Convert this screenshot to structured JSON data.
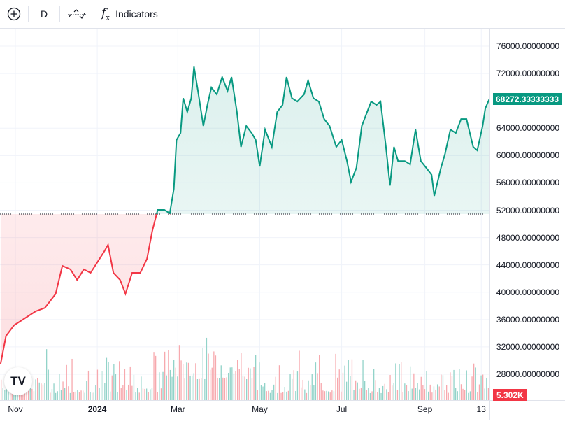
{
  "toolbar": {
    "add_icon": "plus-circle-icon",
    "interval": "D",
    "chart_type_icon": "baseline-chart-icon",
    "indicators_icon": "fx-icon",
    "indicators_label": "Indicators"
  },
  "colors": {
    "up": "#089981",
    "down": "#f23645",
    "vol_up": "#92d3c9",
    "vol_down": "#f7a9ae",
    "grid": "#f0f3fa"
  },
  "last_price": "68272.33333333",
  "last_volume": "5.302K",
  "chart_data": {
    "type": "area",
    "subtype": "baseline",
    "baseline": 51437,
    "ylim": [
      25800,
      78000
    ],
    "yticks": [
      "76000.00000000",
      "72000.00000000",
      "64000.00000000",
      "60000.00000000",
      "56000.00000000",
      "52000.00000000",
      "48000.00000000",
      "44000.00000000",
      "40000.00000000",
      "36000.00000000",
      "32000.00000000",
      "28000.00000000"
    ],
    "ytick_values": [
      76000,
      72000,
      64000,
      60000,
      56000,
      52000,
      48000,
      44000,
      40000,
      36000,
      32000,
      28000
    ],
    "xticks": [
      {
        "label": "Nov",
        "date": "2023-11-01"
      },
      {
        "label": "2024",
        "date": "2024-01-01",
        "bold": true
      },
      {
        "label": "Mar",
        "date": "2024-03-01"
      },
      {
        "label": "May",
        "date": "2024-05-01"
      },
      {
        "label": "Jul",
        "date": "2024-07-01"
      },
      {
        "label": "Sep",
        "date": "2024-09-01"
      },
      {
        "label": "13",
        "date": "2024-10-13"
      }
    ],
    "grid": true,
    "x": [
      "2023-10-21",
      "2023-10-25",
      "2023-10-31",
      "2023-11-08",
      "2023-11-16",
      "2023-11-23",
      "2023-12-01",
      "2023-12-06",
      "2023-12-12",
      "2023-12-17",
      "2023-12-22",
      "2023-12-27",
      "2024-01-01",
      "2024-01-06",
      "2024-01-09",
      "2024-01-13",
      "2024-01-18",
      "2024-01-22",
      "2024-01-27",
      "2024-02-02",
      "2024-02-07",
      "2024-02-11",
      "2024-02-15",
      "2024-02-20",
      "2024-02-24",
      "2024-02-27",
      "2024-02-29",
      "2024-03-03",
      "2024-03-05",
      "2024-03-08",
      "2024-03-11",
      "2024-03-13",
      "2024-03-16",
      "2024-03-20",
      "2024-03-23",
      "2024-03-26",
      "2024-03-30",
      "2024-04-03",
      "2024-04-07",
      "2024-04-10",
      "2024-04-14",
      "2024-04-17",
      "2024-04-21",
      "2024-04-25",
      "2024-04-28",
      "2024-05-01",
      "2024-05-05",
      "2024-05-10",
      "2024-05-14",
      "2024-05-18",
      "2024-05-21",
      "2024-05-25",
      "2024-05-29",
      "2024-06-03",
      "2024-06-06",
      "2024-06-10",
      "2024-06-14",
      "2024-06-18",
      "2024-06-22",
      "2024-06-27",
      "2024-07-01",
      "2024-07-05",
      "2024-07-08",
      "2024-07-12",
      "2024-07-16",
      "2024-07-19",
      "2024-07-23",
      "2024-07-27",
      "2024-07-30",
      "2024-08-03",
      "2024-08-06",
      "2024-08-09",
      "2024-08-12",
      "2024-08-17",
      "2024-08-21",
      "2024-08-25",
      "2024-08-29",
      "2024-09-02",
      "2024-09-06",
      "2024-09-08",
      "2024-09-13",
      "2024-09-16",
      "2024-09-20",
      "2024-09-24",
      "2024-09-28",
      "2024-10-02",
      "2024-10-07",
      "2024-10-10",
      "2024-10-14",
      "2024-10-16",
      "2024-10-19"
    ],
    "y": [
      29530,
      33600,
      35160,
      36180,
      37200,
      37700,
      39770,
      43860,
      43350,
      41800,
      43350,
      42840,
      44370,
      45900,
      46930,
      42840,
      41800,
      39770,
      42840,
      42840,
      44900,
      48980,
      52050,
      52050,
      51540,
      55120,
      62285,
      63300,
      68400,
      66380,
      68400,
      73000,
      69450,
      64330,
      67400,
      69960,
      68940,
      71500,
      69450,
      71500,
      66380,
      61260,
      64330,
      63300,
      62285,
      58400,
      63800,
      61260,
      66380,
      67400,
      71500,
      68400,
      67900,
      68940,
      71000,
      68400,
      67900,
      65350,
      64330,
      61260,
      62285,
      59200,
      56140,
      58200,
      64330,
      65870,
      67900,
      67400,
      67900,
      61260,
      55600,
      61260,
      59200,
      59200,
      58700,
      63800,
      59200,
      58200,
      57180,
      54100,
      58200,
      60240,
      63800,
      63300,
      65350,
      65350,
      61260,
      60750,
      64330,
      66890,
      68272
    ]
  }
}
